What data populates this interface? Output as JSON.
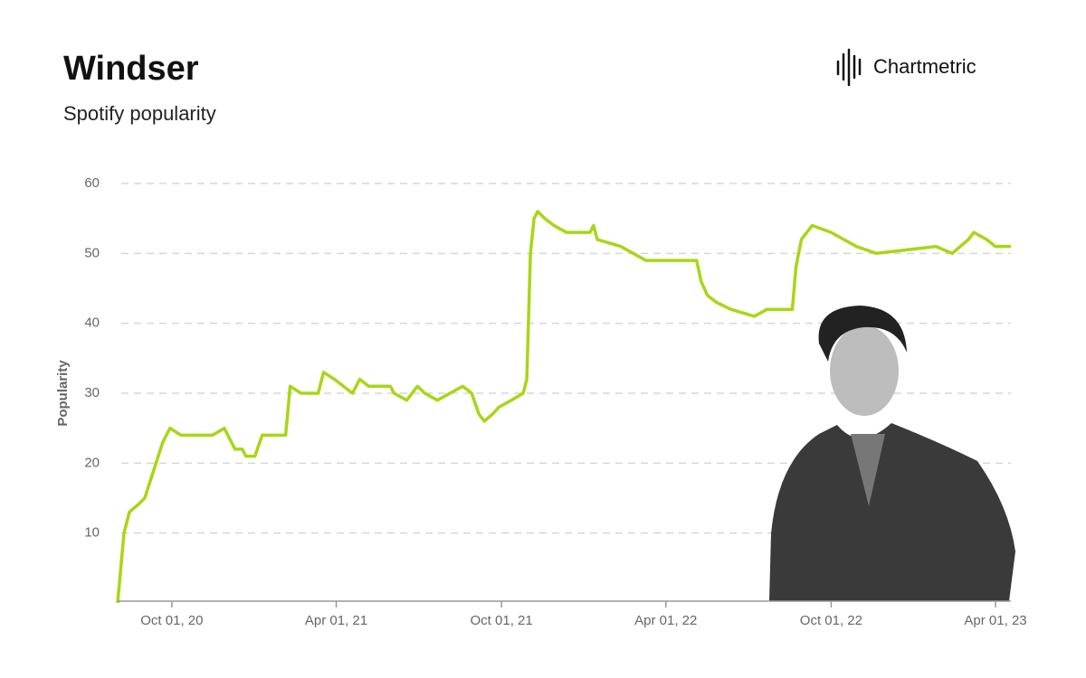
{
  "chart_data": {
    "type": "line",
    "title": "Windser",
    "subtitle": "Spotify popularity",
    "brand": "Chartmetric",
    "ylabel": "Popularity",
    "color": "#a8d616",
    "grid": true,
    "ylim": [
      0,
      60
    ],
    "yticks": [
      10,
      20,
      30,
      40,
      50,
      60
    ],
    "xlim": [
      "2020-08-02",
      "2023-04-18"
    ],
    "xticks": [
      {
        "value": "2020-10-01",
        "label": "Oct 01, 20"
      },
      {
        "value": "2021-04-01",
        "label": "Apr 01, 21"
      },
      {
        "value": "2021-10-01",
        "label": "Oct 01, 21"
      },
      {
        "value": "2022-04-01",
        "label": "Apr 01, 22"
      },
      {
        "value": "2022-10-01",
        "label": "Oct 01, 22"
      },
      {
        "value": "2023-04-01",
        "label": "Apr 01, 23"
      }
    ],
    "x": [
      "2020-08-02",
      "2020-08-09",
      "2020-08-15",
      "2020-08-24",
      "2020-09-01",
      "2020-09-11",
      "2020-09-21",
      "2020-09-29",
      "2020-10-11",
      "2020-11-15",
      "2020-11-28",
      "2020-12-10",
      "2020-12-18",
      "2020-12-22",
      "2021-01-01",
      "2021-01-09",
      "2021-02-04",
      "2021-02-09",
      "2021-02-21",
      "2021-03-12",
      "2021-03-18",
      "2021-03-30",
      "2021-04-09",
      "2021-04-19",
      "2021-04-27",
      "2021-05-07",
      "2021-05-31",
      "2021-06-04",
      "2021-06-18",
      "2021-06-30",
      "2021-07-08",
      "2021-07-22",
      "2021-08-05",
      "2021-08-19",
      "2021-08-29",
      "2021-09-06",
      "2021-09-12",
      "2021-09-21",
      "2021-09-28",
      "2021-10-12",
      "2021-10-25",
      "2021-10-29",
      "2021-11-02",
      "2021-11-06",
      "2021-11-10",
      "2021-11-18",
      "2021-11-28",
      "2021-12-12",
      "2022-01-07",
      "2022-01-11",
      "2022-01-15",
      "2022-02-10",
      "2022-02-24",
      "2022-03-10",
      "2022-05-05",
      "2022-05-10",
      "2022-05-17",
      "2022-05-27",
      "2022-06-12",
      "2022-07-08",
      "2022-07-22",
      "2022-08-19",
      "2022-08-23",
      "2022-08-29",
      "2022-09-04",
      "2022-09-10",
      "2022-10-01",
      "2022-10-29",
      "2022-11-20",
      "2023-01-25",
      "2023-02-12",
      "2023-03-02",
      "2023-03-08",
      "2023-03-22",
      "2023-04-01",
      "2023-04-18"
    ],
    "values": [
      0,
      10,
      13,
      14,
      15,
      19,
      23,
      25,
      24,
      24,
      25,
      22,
      22,
      21,
      21,
      24,
      24,
      31,
      30,
      30,
      33,
      32,
      31,
      30,
      32,
      31,
      31,
      30,
      29,
      31,
      30,
      29,
      30,
      31,
      30,
      27,
      26,
      27,
      28,
      29,
      30,
      32,
      50,
      55,
      56,
      55,
      54,
      53,
      53,
      54,
      52,
      51,
      50,
      49,
      49,
      46,
      44,
      43,
      42,
      41,
      42,
      42,
      48,
      52,
      53,
      54,
      53,
      51,
      50,
      51,
      50,
      52,
      53,
      52,
      51,
      51
    ]
  }
}
